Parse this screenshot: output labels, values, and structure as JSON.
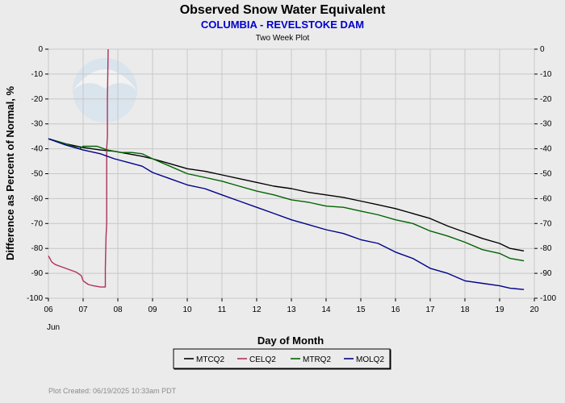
{
  "chart_data": {
    "type": "line",
    "title": "Observed Snow Water Equivalent",
    "subtitle": "COLUMBIA - REVELSTOKE DAM",
    "plot_type_label": "Two Week Plot",
    "ylabel": "Difference as Percent of Normal, %",
    "xlabel": "Day of Month",
    "month_label": "Jun",
    "xlim": [
      6,
      20
    ],
    "ylim": [
      -100,
      0
    ],
    "x_ticks": [
      "06",
      "07",
      "08",
      "09",
      "10",
      "11",
      "12",
      "13",
      "14",
      "15",
      "16",
      "17",
      "18",
      "19",
      "20"
    ],
    "y_ticks": [
      0,
      -10,
      -20,
      -30,
      -40,
      -50,
      -60,
      -70,
      -80,
      -90,
      -100
    ],
    "grid": true,
    "legend_position": "bottom",
    "watermark": "NOAA",
    "series": [
      {
        "name": "MTCQ2",
        "color": "#000000",
        "x": [
          6.0,
          6.5,
          7.0,
          7.5,
          7.9,
          8.3,
          8.7,
          9.0,
          9.5,
          10.0,
          10.5,
          11.0,
          11.5,
          12.0,
          12.5,
          13.0,
          13.5,
          14.0,
          14.5,
          15.0,
          15.5,
          16.0,
          16.5,
          17.0,
          17.5,
          18.0,
          18.5,
          19.0,
          19.3,
          19.7
        ],
        "y": [
          -36,
          -38,
          -39.5,
          -40.5,
          -41,
          -42,
          -43,
          -44,
          -46,
          -48,
          -49,
          -50.5,
          -52,
          -53.5,
          -55,
          -56,
          -57.5,
          -58.5,
          -59.5,
          -61,
          -62.5,
          -64,
          -66,
          -68,
          -71,
          -73.5,
          -76,
          -78,
          -80,
          -81
        ]
      },
      {
        "name": "CELQ2",
        "color": "#b03060",
        "x": [
          6.0,
          6.1,
          6.2,
          6.4,
          6.6,
          6.8,
          6.95,
          7.0,
          7.15,
          7.3,
          7.5,
          7.64,
          7.64,
          7.66,
          7.68,
          7.68,
          7.7,
          7.7,
          7.72
        ],
        "y": [
          -83,
          -85.5,
          -86.5,
          -87.5,
          -88.5,
          -89.5,
          -91,
          -93,
          -94.5,
          -95,
          -95.5,
          -95.5,
          -88,
          -75,
          -70,
          -40,
          -35,
          -20,
          0
        ]
      },
      {
        "name": "MTRQ2",
        "color": "#006400",
        "x": [
          6.0,
          6.5,
          6.9,
          7.0,
          7.4,
          7.7,
          7.9,
          8.1,
          8.4,
          8.7,
          9.0,
          9.5,
          10.0,
          10.5,
          11.0,
          11.5,
          12.0,
          12.5,
          13.0,
          13.5,
          14.0,
          14.5,
          15.0,
          15.5,
          16.0,
          16.5,
          17.0,
          17.5,
          18.0,
          18.5,
          19.0,
          19.3,
          19.7
        ],
        "y": [
          -36,
          -38,
          -40,
          -39,
          -39,
          -40.5,
          -41,
          -41.5,
          -41.5,
          -42,
          -44,
          -47,
          -50,
          -51.5,
          -53,
          -55,
          -57,
          -58.5,
          -60.5,
          -61.5,
          -63,
          -63.5,
          -65,
          -66.5,
          -68.5,
          -70,
          -73,
          -75,
          -77.5,
          -80.5,
          -82,
          -84,
          -85
        ]
      },
      {
        "name": "MOLQ2",
        "color": "#00008b",
        "x": [
          6.0,
          6.5,
          7.0,
          7.5,
          7.9,
          8.3,
          8.7,
          9.0,
          9.5,
          10.0,
          10.5,
          11.0,
          11.5,
          12.0,
          12.5,
          13.0,
          13.5,
          14.0,
          14.5,
          15.0,
          15.5,
          16.0,
          16.5,
          17.0,
          17.5,
          18.0,
          18.5,
          19.0,
          19.3,
          19.7
        ],
        "y": [
          -36,
          -38.5,
          -40.5,
          -42,
          -44,
          -45.5,
          -47,
          -49.5,
          -52,
          -54.5,
          -56,
          -58.5,
          -61,
          -63.5,
          -66,
          -68.5,
          -70.5,
          -72.5,
          -74,
          -76.5,
          -78,
          -81.5,
          -84,
          -88,
          -90,
          -93,
          -94,
          -95,
          -96,
          -96.5
        ]
      }
    ]
  },
  "footer": "Plot Created:  06/19/2025 10:33am PDT"
}
